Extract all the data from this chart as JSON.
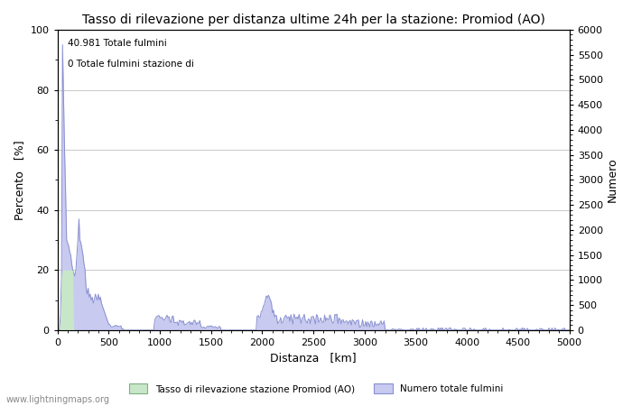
{
  "title": "Tasso di rilevazione per distanza ultime 24h per la stazione: Promiod (AO)",
  "xlabel": "Distanza   [km]",
  "ylabel_left": "Percento   [%]",
  "ylabel_right": "Numero",
  "xlim": [
    0,
    5000
  ],
  "ylim_left": [
    0,
    100
  ],
  "ylim_right": [
    0,
    6000
  ],
  "xticks_major": [
    0,
    500,
    1000,
    1500,
    2000,
    2500,
    3000,
    3500,
    4000,
    4500,
    5000
  ],
  "yticks_left_major": [
    0,
    20,
    40,
    60,
    80,
    100
  ],
  "yticks_right_major": [
    0,
    500,
    1000,
    1500,
    2000,
    2500,
    3000,
    3500,
    4000,
    4500,
    5000,
    5500,
    6000
  ],
  "annotation_line1": "40.981 Totale fulmini",
  "annotation_line2": "0 Totale fulmini stazione di",
  "legend_label1": "Tasso di rilevazione stazione Promiod (AO)",
  "legend_label2": "Numero totale fulmini",
  "watermark": "www.lightningmaps.org",
  "fill_color_blue": "#c8caf0",
  "line_color_blue": "#8890d0",
  "fill_color_green": "#c8e6c8",
  "line_color_green": "#90c890",
  "background_color": "#ffffff",
  "grid_color": "#cccccc",
  "title_fontsize": 10,
  "axis_fontsize": 9,
  "tick_fontsize": 8
}
